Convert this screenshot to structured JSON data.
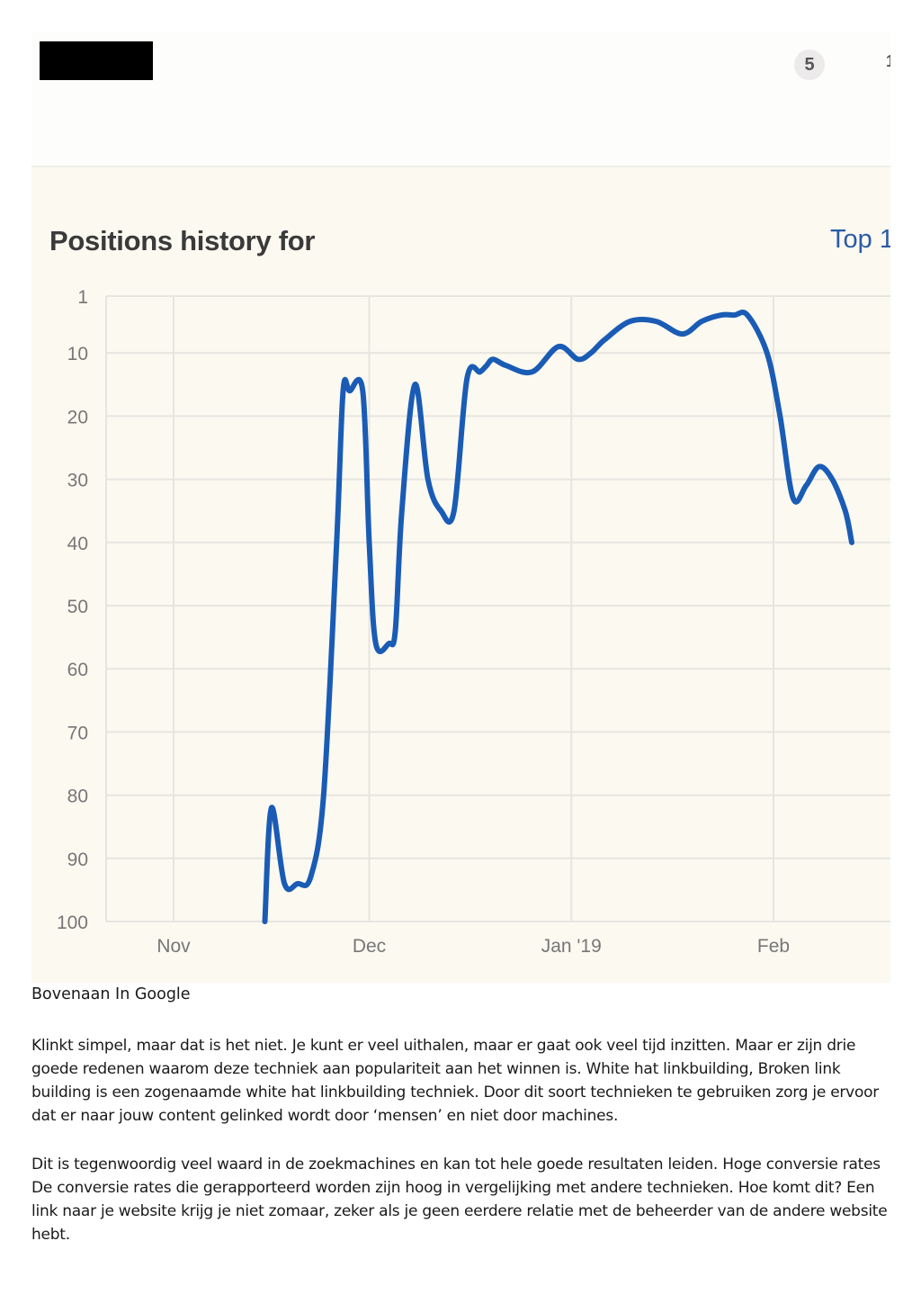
{
  "header": {
    "badge_count": "5",
    "badge_cut": "1"
  },
  "chart": {
    "title": "Positions history for",
    "link": "Top 1"
  },
  "chart_data": {
    "type": "line",
    "title": "Positions history for",
    "xlabel": "",
    "ylabel": "",
    "y_inverted": true,
    "ylim": [
      1,
      100
    ],
    "y_ticks": [
      1,
      10,
      20,
      30,
      40,
      50,
      60,
      70,
      80,
      90,
      100
    ],
    "x_ticks": [
      "Nov",
      "Dec",
      "Jan '19",
      "Feb"
    ],
    "grid": true,
    "line_color": "#1a5cb5",
    "series": [
      {
        "x": [
          "2018-11-15",
          "2018-11-16",
          "2018-11-18",
          "2018-11-20",
          "2018-11-22",
          "2018-11-24",
          "2018-11-26",
          "2018-11-27",
          "2018-11-28",
          "2018-11-30",
          "2018-12-01",
          "2018-12-02",
          "2018-12-04",
          "2018-12-05",
          "2018-12-06",
          "2018-12-08",
          "2018-12-10",
          "2018-12-12",
          "2018-12-14",
          "2018-12-16",
          "2018-12-18",
          "2018-12-19",
          "2018-12-20",
          "2018-12-22",
          "2018-12-26",
          "2018-12-30",
          "2019-01-02",
          "2019-01-04",
          "2019-01-06",
          "2019-01-10",
          "2019-01-14",
          "2019-01-18",
          "2019-01-21",
          "2019-01-24",
          "2019-01-26",
          "2019-01-28",
          "2019-01-31",
          "2019-02-02",
          "2019-02-04",
          "2019-02-06",
          "2019-02-08",
          "2019-02-10",
          "2019-02-12",
          "2019-02-13"
        ],
        "y": [
          100,
          82,
          94,
          94,
          93,
          80,
          40,
          16,
          16,
          16,
          40,
          56,
          56,
          54,
          35,
          15,
          30,
          35,
          35,
          14,
          13,
          12,
          11,
          12,
          13,
          9,
          11,
          10,
          8,
          5,
          5,
          7,
          5,
          4,
          4,
          4,
          10,
          20,
          33,
          31,
          28,
          30,
          35,
          40
        ]
      }
    ]
  },
  "text": {
    "caption": "Bovenaan In Google",
    "paragraph1": "Klinkt simpel, maar dat is het niet. Je kunt er veel uithalen, maar er gaat ook veel tijd inzitten. Maar er zijn drie goede redenen waarom deze techniek aan populariteit aan het winnen is. White hat linkbuilding, Broken link building is een zogenaamde white hat linkbuilding techniek. Door dit soort technieken te gebruiken zorg je ervoor dat er naar jouw content gelinked wordt door ‘mensen’ en niet door machines.",
    "paragraph2": "Dit is tegenwoordig veel waard in de zoekmachines en kan tot hele goede resultaten leiden. Hoge conversie rates De conversie rates die gerapporteerd worden zijn hoog in vergelijking met andere technieken. Hoe komt dit? Een link naar je website krijg je niet zomaar, zeker als je geen eerdere relatie met de beheerder van de andere website hebt."
  }
}
